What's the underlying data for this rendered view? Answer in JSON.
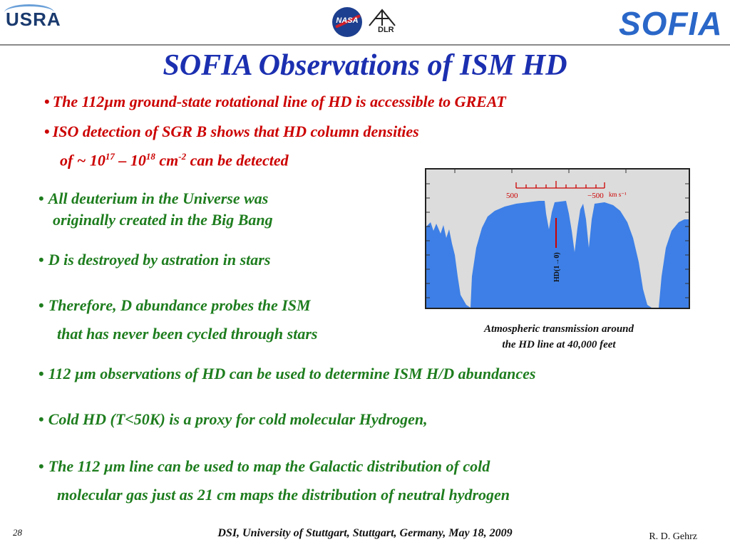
{
  "header": {
    "usra_logo": "USRA",
    "nasa_logo": "NASA",
    "dlr_logo": "DLR",
    "sofia_logo": "SOFIA"
  },
  "title": "SOFIA Observations of ISM HD",
  "red_bullets": [
    "The 112µm ground-state rotational line of HD is accessible to GREAT",
    "ISO detection of SGR B shows that HD column densities"
  ],
  "red_bullet2_line2": {
    "prefix": "of ~ 10",
    "exp1": "17",
    "dash": " – 10",
    "exp2": "18",
    "unit": " cm",
    "exp3": "-2",
    "suffix": " can be detected"
  },
  "green_bullets": {
    "b1_l1": "All deuterium in the Universe was",
    "b1_l2": "originally created in the Big Bang",
    "b2": "D is destroyed by astration in stars",
    "b3_l1": "Therefore, D abundance probes the ISM",
    "b3_l2": "that has never been cycled through stars",
    "b4": "112 µm observations of HD can be used to determine ISM H/D abundances",
    "b5": "Cold HD (T<50K) is a proxy for cold molecular Hydrogen,",
    "b6_l1": "The 112 µm line can be used to map the Galactic distribution of cold",
    "b6_l2": "molecular gas  just as 21 cm maps the distribution of neutral hydrogen"
  },
  "figure": {
    "scale_left": "500",
    "scale_right": "−500",
    "scale_unit": "km s⁻¹",
    "line_label": "HD(1→0)",
    "caption_l1": "Atmospheric transmission around",
    "caption_l2": "the HD line at 40,000 feet",
    "colors": {
      "transmission": "#3d7fe6",
      "background": "#dcdcdc",
      "marker": "#cc0000"
    }
  },
  "footer": {
    "slide_number": "28",
    "center": "DSI, University of Stuttgart, Stuttgart, Germany, May 18, 2009",
    "author": "R.  D. Gehrz"
  }
}
